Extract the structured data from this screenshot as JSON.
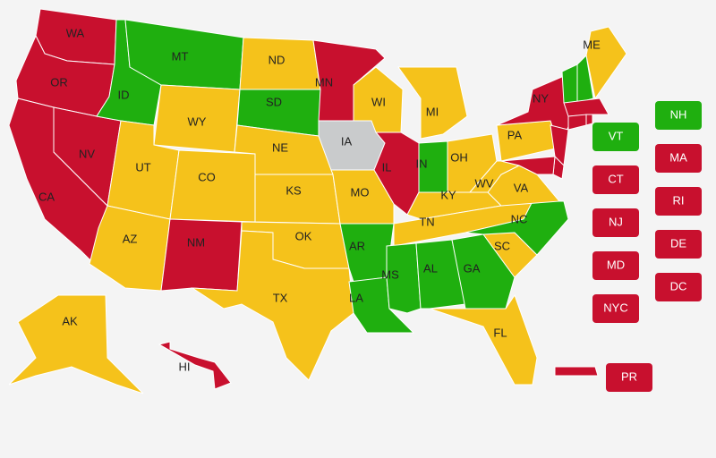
{
  "states": [
    {
      "label": "WA",
      "color": "#c8102e"
    },
    {
      "label": "OR",
      "color": "#c8102e"
    },
    {
      "label": "CA",
      "color": "#c8102e"
    },
    {
      "label": "NV",
      "color": "#c8102e"
    },
    {
      "label": "ID",
      "color": "#1faf0f"
    },
    {
      "label": "MT",
      "color": "#1faf0f"
    },
    {
      "label": "WY",
      "color": "#f5c21b"
    },
    {
      "label": "UT",
      "color": "#f5c21b"
    },
    {
      "label": "CO",
      "color": "#f5c21b"
    },
    {
      "label": "AZ",
      "color": "#f5c21b"
    },
    {
      "label": "NM",
      "color": "#c8102e"
    },
    {
      "label": "ND",
      "color": "#f5c21b"
    },
    {
      "label": "SD",
      "color": "#1faf0f"
    },
    {
      "label": "NE",
      "color": "#f5c21b"
    },
    {
      "label": "KS",
      "color": "#f5c21b"
    },
    {
      "label": "OK",
      "color": "#f5c21b"
    },
    {
      "label": "TX",
      "color": "#f5c21b"
    },
    {
      "label": "MN",
      "color": "#c8102e"
    },
    {
      "label": "IA",
      "color": "#c9cbcc"
    },
    {
      "label": "MO",
      "color": "#f5c21b"
    },
    {
      "label": "AR",
      "color": "#1faf0f"
    },
    {
      "label": "LA",
      "color": "#1faf0f"
    },
    {
      "label": "WI",
      "color": "#f5c21b"
    },
    {
      "label": "IL",
      "color": "#c8102e"
    },
    {
      "label": "MI",
      "color": "#f5c21b"
    },
    {
      "label": "IN",
      "color": "#1faf0f"
    },
    {
      "label": "OH",
      "color": "#f5c21b"
    },
    {
      "label": "KY",
      "color": "#f5c21b"
    },
    {
      "label": "TN",
      "color": "#f5c21b"
    },
    {
      "label": "MS",
      "color": "#1faf0f"
    },
    {
      "label": "AL",
      "color": "#1faf0f"
    },
    {
      "label": "GA",
      "color": "#1faf0f"
    },
    {
      "label": "FL",
      "color": "#f5c21b"
    },
    {
      "label": "SC",
      "color": "#f5c21b"
    },
    {
      "label": "NC",
      "color": "#1faf0f"
    },
    {
      "label": "VA",
      "color": "#f5c21b"
    },
    {
      "label": "WV",
      "color": "#f5c21b"
    },
    {
      "label": "PA",
      "color": "#f5c21b"
    },
    {
      "label": "NY",
      "color": "#c8102e"
    },
    {
      "label": "ME",
      "color": "#f5c21b"
    },
    {
      "label": "AK",
      "color": "#f5c21b"
    },
    {
      "label": "HI",
      "color": "#c8102e"
    }
  ],
  "boxes": [
    {
      "label": "VT",
      "color": "#1faf0f"
    },
    {
      "label": "NH",
      "color": "#1faf0f"
    },
    {
      "label": "MA",
      "color": "#c8102e"
    },
    {
      "label": "CT",
      "color": "#c8102e"
    },
    {
      "label": "RI",
      "color": "#c8102e"
    },
    {
      "label": "NJ",
      "color": "#c8102e"
    },
    {
      "label": "DE",
      "color": "#c8102e"
    },
    {
      "label": "MD",
      "color": "#c8102e"
    },
    {
      "label": "DC",
      "color": "#c8102e"
    },
    {
      "label": "NYC",
      "color": "#c8102e"
    },
    {
      "label": "PR",
      "color": "#c8102e"
    }
  ]
}
